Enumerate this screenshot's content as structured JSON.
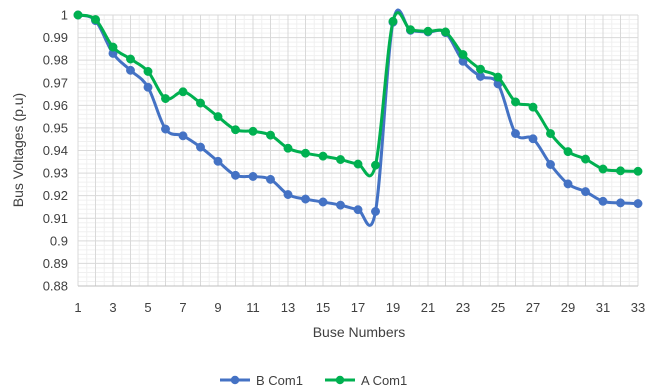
{
  "chart_data": {
    "type": "line",
    "title": "",
    "xlabel": "Buse Numbers",
    "ylabel": "Bus Voltages (p.u)",
    "x": [
      1,
      2,
      3,
      4,
      5,
      6,
      7,
      8,
      9,
      10,
      11,
      12,
      13,
      14,
      15,
      16,
      17,
      18,
      19,
      20,
      21,
      22,
      23,
      24,
      25,
      26,
      27,
      28,
      29,
      30,
      31,
      32,
      33
    ],
    "xticks": [
      1,
      3,
      5,
      7,
      9,
      11,
      13,
      15,
      17,
      19,
      21,
      23,
      25,
      27,
      29,
      31,
      33
    ],
    "xlim": [
      1,
      33
    ],
    "ylim": [
      0.88,
      1.0
    ],
    "yticks": [
      0.88,
      0.89,
      0.9,
      0.91,
      0.92,
      0.93,
      0.94,
      0.95,
      0.96,
      0.97,
      0.98,
      0.99,
      1
    ],
    "ytick_labels": [
      "0.88",
      "0.89",
      "0.9",
      "0.91",
      "0.92",
      "0.93",
      "0.94",
      "0.95",
      "0.96",
      "0.97",
      "0.98",
      "0.99",
      "1"
    ],
    "grid": true,
    "legend_position": "bottom",
    "series": [
      {
        "name": "B Com1",
        "color": "#4472c4",
        "values": [
          1.0,
          0.9975,
          0.983,
          0.9755,
          0.968,
          0.9495,
          0.9465,
          0.9415,
          0.9352,
          0.929,
          0.9285,
          0.9272,
          0.9205,
          0.9185,
          0.9172,
          0.9158,
          0.9138,
          0.913,
          0.9968,
          0.9932,
          0.9925,
          0.9922,
          0.9795,
          0.9728,
          0.9695,
          0.9475,
          0.9452,
          0.9338,
          0.9252,
          0.9218,
          0.9175,
          0.9168,
          0.9165
        ]
      },
      {
        "name": "A Com1",
        "color": "#00b050",
        "values": [
          1.0,
          0.998,
          0.9858,
          0.9805,
          0.975,
          0.963,
          0.966,
          0.961,
          0.955,
          0.9492,
          0.9485,
          0.9468,
          0.941,
          0.9388,
          0.9375,
          0.936,
          0.934,
          0.9335,
          0.9972,
          0.9935,
          0.9928,
          0.9925,
          0.9825,
          0.976,
          0.9725,
          0.9615,
          0.9592,
          0.9475,
          0.9395,
          0.9362,
          0.9318,
          0.931,
          0.9308
        ]
      }
    ]
  }
}
